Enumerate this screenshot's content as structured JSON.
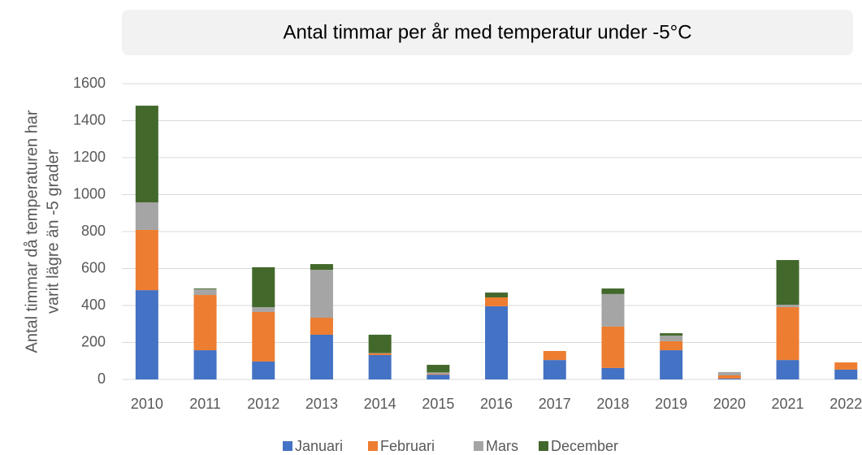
{
  "chart_data": {
    "type": "stacked_bar",
    "title": "Antal timmar per år med temperatur under -5°C",
    "ylabel": [
      "Antal timmar då temperaturen har",
      "varit lägre än -5 grader"
    ],
    "categories": [
      "2010",
      "2011",
      "2012",
      "2013",
      "2014",
      "2015",
      "2016",
      "2017",
      "2018",
      "2019",
      "2020",
      "2021",
      "2022"
    ],
    "series": [
      {
        "name": "Januari",
        "color": "#4472c4",
        "values": [
          483,
          158,
          97,
          242,
          132,
          26,
          396,
          105,
          62,
          158,
          5,
          105,
          53
        ]
      },
      {
        "name": "Februari",
        "color": "#ed7d31",
        "values": [
          326,
          299,
          268,
          92,
          9,
          4,
          48,
          49,
          224,
          49,
          17,
          286,
          39
        ]
      },
      {
        "name": "Mars",
        "color": "#a5a5a5",
        "values": [
          149,
          31,
          26,
          259,
          2,
          8,
          0,
          0,
          176,
          30,
          18,
          13,
          0
        ]
      },
      {
        "name": "December",
        "color": "#43682b",
        "values": [
          523,
          4,
          216,
          31,
          99,
          41,
          26,
          0,
          30,
          13,
          0,
          242,
          0
        ]
      }
    ],
    "ylim": [
      0,
      1600
    ],
    "yticks": [
      0,
      200,
      400,
      600,
      800,
      1000,
      1200,
      1400,
      1600
    ],
    "grid": true,
    "legend": "bottom"
  }
}
